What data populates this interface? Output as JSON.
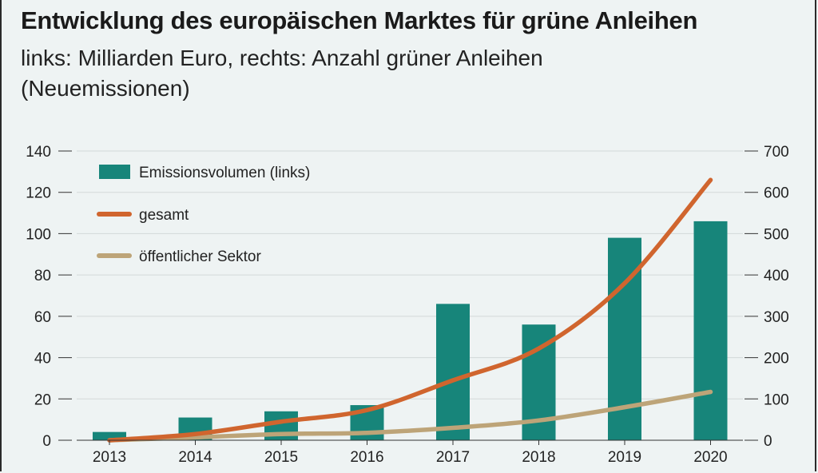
{
  "chart_data": {
    "type": "bar",
    "title": "Entwicklung des europäischen Marktes für grüne Anleihen",
    "subtitle": "links: Milliarden Euro, rechts: Anzahl grüner Anleihen (Neuemissionen)",
    "categories": [
      "2013",
      "2014",
      "2015",
      "2016",
      "2017",
      "2018",
      "2019",
      "2020"
    ],
    "left_axis": {
      "ylim": [
        0,
        140
      ],
      "ticks": [
        0,
        20,
        40,
        60,
        80,
        100,
        120,
        140
      ]
    },
    "right_axis": {
      "ylim": [
        0,
        700
      ],
      "ticks": [
        0,
        100,
        200,
        300,
        400,
        500,
        600,
        700
      ]
    },
    "series": [
      {
        "name": "Emissionsvolumen (links)",
        "type": "bar",
        "axis": "left",
        "color": "#17857a",
        "values": [
          4,
          11,
          14,
          17,
          66,
          56,
          98,
          106
        ]
      },
      {
        "name": "gesamt",
        "type": "line",
        "axis": "right",
        "color": "#d0652e",
        "values": [
          0,
          15,
          45,
          73,
          145,
          222,
          380,
          630
        ]
      },
      {
        "name": "öffentlicher Sektor",
        "type": "line",
        "axis": "right",
        "color": "#bda478",
        "values": [
          0,
          7,
          15,
          18,
          30,
          48,
          80,
          117
        ]
      }
    ],
    "legend_position": "top-left",
    "grid": true
  }
}
